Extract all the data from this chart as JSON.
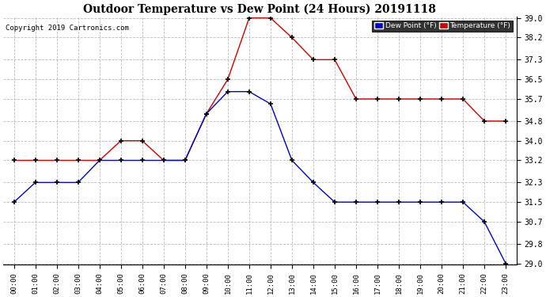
{
  "title": "Outdoor Temperature vs Dew Point (24 Hours) 20191118",
  "copyright": "Copyright 2019 Cartronics.com",
  "hours": [
    "00:00",
    "01:00",
    "02:00",
    "03:00",
    "04:00",
    "05:00",
    "06:00",
    "07:00",
    "08:00",
    "09:00",
    "10:00",
    "11:00",
    "12:00",
    "13:00",
    "14:00",
    "15:00",
    "16:00",
    "17:00",
    "18:00",
    "19:00",
    "20:00",
    "21:00",
    "22:00",
    "23:00"
  ],
  "temperature": [
    33.2,
    33.2,
    33.2,
    33.2,
    33.2,
    34.0,
    34.0,
    33.2,
    33.2,
    35.1,
    36.5,
    39.0,
    39.0,
    38.2,
    37.3,
    37.3,
    35.7,
    35.7,
    35.7,
    35.7,
    35.7,
    35.7,
    34.8,
    34.8
  ],
  "dew_point": [
    31.5,
    32.3,
    32.3,
    32.3,
    33.2,
    33.2,
    33.2,
    33.2,
    33.2,
    35.1,
    36.0,
    36.0,
    35.5,
    33.2,
    32.3,
    31.5,
    31.5,
    31.5,
    31.5,
    31.5,
    31.5,
    31.5,
    30.7,
    29.0
  ],
  "temp_color": "#cc0000",
  "dew_color": "#0000cc",
  "marker_color": "#000000",
  "ylim_min": 29.0,
  "ylim_max": 39.0,
  "yticks": [
    29.0,
    29.8,
    30.7,
    31.5,
    32.3,
    33.2,
    34.0,
    34.8,
    35.7,
    36.5,
    37.3,
    38.2,
    39.0
  ],
  "bg_color": "#ffffff",
  "grid_color": "#aaaaaa",
  "legend_dew_bg": "#0000cc",
  "legend_temp_bg": "#cc0000"
}
